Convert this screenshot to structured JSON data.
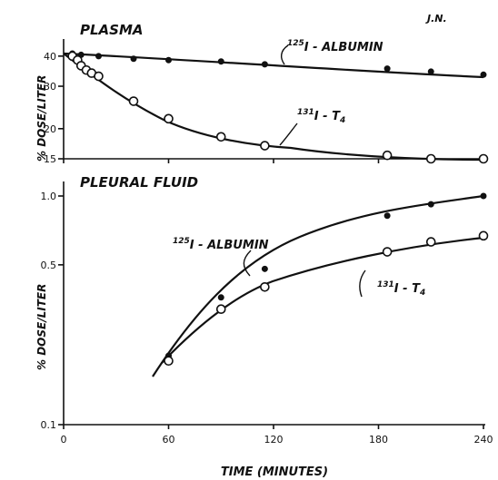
{
  "chart_data": [
    {
      "type": "scatter",
      "title": "PLASMA",
      "corner_label": "J.N.",
      "ylabel": "% DOSE/LITER",
      "y_scale": "log",
      "ylim": [
        15,
        45
      ],
      "xlim": [
        0,
        240
      ],
      "y_ticks": [
        "40",
        "30",
        "20",
        "15"
      ],
      "series": [
        {
          "name": "125I-ALBUMIN",
          "marker": "filled",
          "x": [
            5,
            10,
            20,
            40,
            60,
            90,
            115,
            185,
            210,
            240
          ],
          "y": [
            41,
            40.5,
            40,
            39,
            38.5,
            38,
            37,
            35.5,
            34.5,
            33.5
          ]
        },
        {
          "name": "131I-T4",
          "marker": "open",
          "x": [
            5,
            8,
            10,
            13,
            16,
            20,
            40,
            60,
            90,
            115,
            185,
            210,
            240
          ],
          "y": [
            40,
            38.5,
            36.5,
            35,
            34,
            33,
            26,
            22,
            18.5,
            17,
            15.5,
            15,
            15
          ]
        }
      ]
    },
    {
      "type": "scatter",
      "title": "PLEURAL FLUID",
      "ylabel": "% DOSE/LITER",
      "xlabel": "TIME (MINUTES)",
      "y_scale": "log",
      "ylim": [
        0.1,
        1.0
      ],
      "xlim": [
        0,
        240
      ],
      "x_ticks": [
        "0",
        "60",
        "120",
        "180",
        "240"
      ],
      "y_ticks": [
        "1.0",
        "0.5",
        "0.1"
      ],
      "series": [
        {
          "name": "125I-ALBUMIN",
          "marker": "filled",
          "x": [
            60,
            90,
            115,
            185,
            210,
            240
          ],
          "y": [
            0.2,
            0.36,
            0.48,
            0.82,
            0.92,
            1.0
          ]
        },
        {
          "name": "131I-T4",
          "marker": "open",
          "x": [
            60,
            90,
            115,
            185,
            210,
            240
          ],
          "y": [
            0.19,
            0.32,
            0.4,
            0.57,
            0.63,
            0.67
          ]
        }
      ]
    }
  ]
}
